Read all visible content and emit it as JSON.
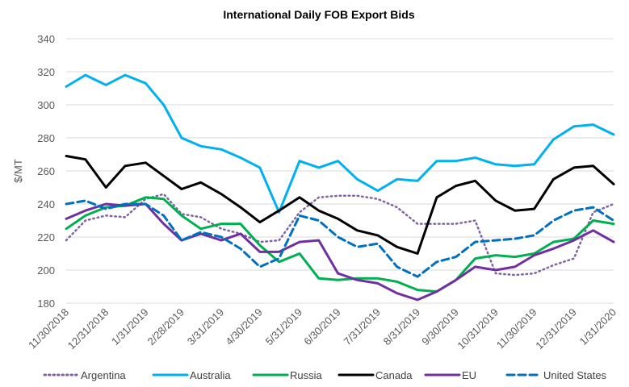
{
  "chart_data": {
    "type": "line",
    "title": "International Daily FOB Export Bids",
    "xlabel": "",
    "ylabel": "$/MT",
    "ylim": [
      180,
      340
    ],
    "yticks": [
      180,
      200,
      220,
      240,
      260,
      280,
      300,
      320,
      340
    ],
    "xlim": [
      "2018-11-30",
      "2020-01-31"
    ],
    "xtick_dates": [
      "2018-11-30",
      "2018-12-31",
      "2019-01-31",
      "2019-02-28",
      "2019-03-31",
      "2019-04-30",
      "2019-05-31",
      "2019-06-30",
      "2019-07-31",
      "2019-08-31",
      "2019-09-30",
      "2019-10-31",
      "2019-11-30",
      "2019-12-31",
      "2020-01-31"
    ],
    "xtick_labels": [
      "11/30/2018",
      "12/31/2018",
      "1/31/2019",
      "2/28/2019",
      "3/31/2019",
      "4/30/2019",
      "5/31/2019",
      "6/30/2019",
      "7/31/2019",
      "8/31/2019",
      "9/30/2019",
      "10/31/2019",
      "11/30/2019",
      "12/31/2019",
      "1/31/2020"
    ],
    "grid": true,
    "legend_position": "bottom",
    "x": [
      "2018-11-30",
      "2018-12-15",
      "2018-12-31",
      "2019-01-15",
      "2019-01-31",
      "2019-02-14",
      "2019-02-28",
      "2019-03-15",
      "2019-03-31",
      "2019-04-15",
      "2019-04-30",
      "2019-05-15",
      "2019-05-31",
      "2019-06-15",
      "2019-06-30",
      "2019-07-15",
      "2019-07-31",
      "2019-08-15",
      "2019-08-31",
      "2019-09-15",
      "2019-09-30",
      "2019-10-15",
      "2019-10-31",
      "2019-11-15",
      "2019-11-30",
      "2019-12-15",
      "2019-12-31",
      "2020-01-15",
      "2020-01-31"
    ],
    "series": [
      {
        "name": "Argentina",
        "color": "#8064a2",
        "style": "dotted",
        "values": [
          218,
          230,
          233,
          232,
          243,
          246,
          234,
          232,
          225,
          222,
          217,
          218,
          235,
          244,
          245,
          245,
          243,
          238,
          228,
          228,
          228,
          230,
          198,
          197,
          198,
          203,
          207,
          235,
          240
        ]
      },
      {
        "name": "Australia",
        "color": "#00b0f0",
        "style": "solid",
        "values": [
          311,
          318,
          312,
          318,
          313,
          300,
          280,
          275,
          273,
          268,
          262,
          235,
          266,
          262,
          266,
          255,
          248,
          255,
          254,
          266,
          266,
          268,
          264,
          263,
          264,
          279,
          287,
          288,
          282
        ]
      },
      {
        "name": "Russia",
        "color": "#00b050",
        "style": "solid",
        "values": [
          225,
          233,
          238,
          239,
          244,
          243,
          233,
          225,
          228,
          228,
          215,
          205,
          210,
          195,
          194,
          195,
          195,
          193,
          188,
          187,
          194,
          207,
          209,
          208,
          210,
          217,
          219,
          230,
          228
        ]
      },
      {
        "name": "Canada",
        "color": "#000000",
        "style": "solid",
        "values": [
          269,
          267,
          250,
          263,
          265,
          257,
          249,
          253,
          246,
          238,
          229,
          236,
          244,
          236,
          231,
          224,
          221,
          214,
          210,
          244,
          251,
          254,
          242,
          236,
          237,
          255,
          262,
          263,
          252
        ]
      },
      {
        "name": "EU",
        "color": "#7030a0",
        "style": "solid",
        "values": [
          231,
          236,
          240,
          239,
          240,
          228,
          218,
          222,
          218,
          222,
          211,
          211,
          217,
          218,
          198,
          194,
          192,
          186,
          182,
          187,
          194,
          202,
          200,
          202,
          209,
          213,
          218,
          224,
          217
        ]
      },
      {
        "name": "United States",
        "color": "#0070c0",
        "style": "dashed",
        "values": [
          240,
          242,
          237,
          240,
          240,
          233,
          218,
          223,
          220,
          213,
          202,
          207,
          233,
          230,
          220,
          214,
          216,
          202,
          196,
          205,
          208,
          217,
          218,
          219,
          221,
          230,
          236,
          238,
          230
        ]
      }
    ]
  }
}
